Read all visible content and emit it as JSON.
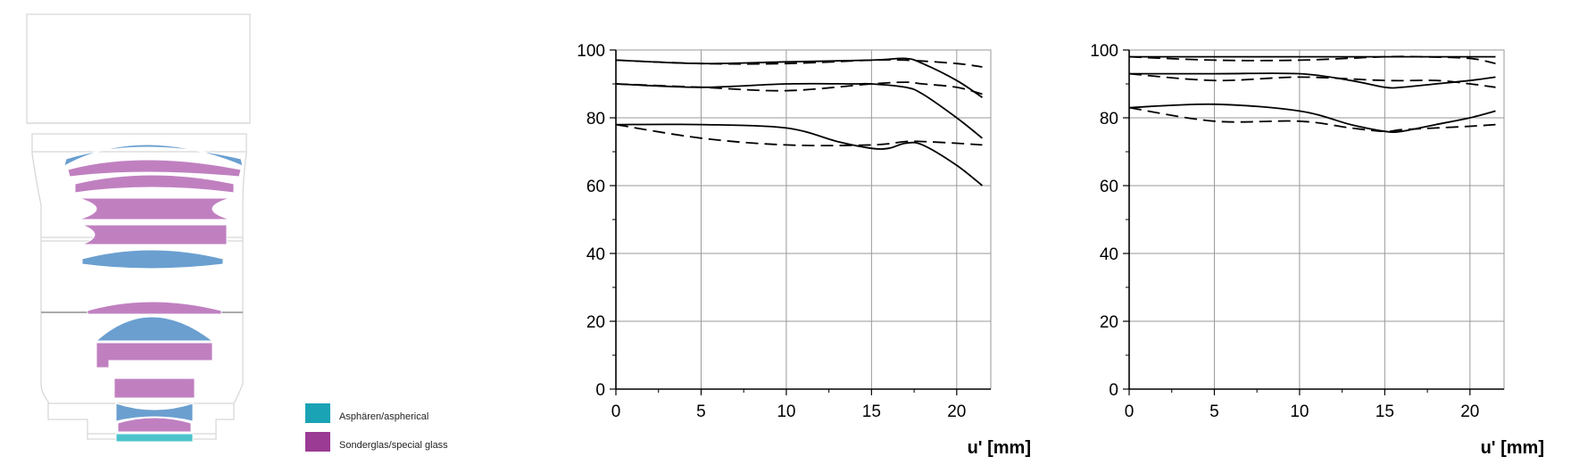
{
  "lens_diagram": {
    "legend": [
      {
        "label": "Asphären/aspherical",
        "color": "#1aa3b5"
      },
      {
        "label": "Sonderglas/special glass",
        "color": "#9b3b93"
      }
    ],
    "colors": {
      "normal_glass": "#6a9fd0",
      "special_glass": "#c080c0",
      "aspherical": "#4cc3cc",
      "outline": "#cfcfcf"
    }
  },
  "chart_data": [
    {
      "type": "line",
      "xlabel": "u' [mm]",
      "ylabel": "",
      "xlim": [
        0,
        22
      ],
      "ylim": [
        0,
        100
      ],
      "xticks": [
        0,
        5,
        10,
        15,
        20
      ],
      "yticks": [
        0,
        20,
        40,
        60,
        80,
        100
      ],
      "grid": true,
      "series": [
        {
          "style": "solid",
          "x": [
            0,
            5,
            10,
            15,
            17,
            18,
            20,
            21.5
          ],
          "y": [
            97,
            96,
            96.5,
            97,
            97.5,
            96,
            91,
            86
          ]
        },
        {
          "style": "dashed",
          "x": [
            0,
            5,
            10,
            15,
            17,
            20,
            21.5
          ],
          "y": [
            97,
            96,
            96,
            97,
            97,
            96,
            95
          ]
        },
        {
          "style": "solid",
          "x": [
            0,
            5,
            10,
            14,
            15,
            17,
            18,
            20,
            21.5
          ],
          "y": [
            90,
            89,
            90,
            90,
            90,
            89,
            87,
            80,
            74
          ]
        },
        {
          "style": "dashed",
          "x": [
            0,
            5,
            10,
            15,
            17,
            18,
            20,
            21.5
          ],
          "y": [
            90,
            89,
            88,
            90,
            90.5,
            90,
            89,
            87
          ]
        },
        {
          "style": "solid",
          "x": [
            0,
            5,
            10,
            13,
            15,
            16,
            17,
            18,
            20,
            21.5
          ],
          "y": [
            78,
            78,
            77,
            73,
            71,
            71,
            72.5,
            72,
            66,
            60
          ]
        },
        {
          "style": "dashed",
          "x": [
            0,
            5,
            10,
            15,
            17,
            18,
            20,
            21.5
          ],
          "y": [
            78,
            74,
            72,
            72,
            73,
            73,
            72.5,
            72
          ]
        }
      ]
    },
    {
      "type": "line",
      "xlabel": "u' [mm]",
      "ylabel": "",
      "xlim": [
        0,
        22
      ],
      "ylim": [
        0,
        100
      ],
      "xticks": [
        0,
        5,
        10,
        15,
        20
      ],
      "yticks": [
        0,
        20,
        40,
        60,
        80,
        100
      ],
      "grid": true,
      "series": [
        {
          "style": "solid",
          "x": [
            0,
            5,
            10,
            15,
            20,
            21.5
          ],
          "y": [
            98,
            98,
            98,
            98,
            98,
            98
          ]
        },
        {
          "style": "dashed",
          "x": [
            0,
            5,
            10,
            15,
            17,
            20,
            21.5
          ],
          "y": [
            98,
            97,
            97,
            98,
            98,
            97.5,
            96
          ]
        },
        {
          "style": "solid",
          "x": [
            0,
            5,
            10,
            13,
            15,
            16,
            18,
            20,
            21.5
          ],
          "y": [
            93,
            93,
            93,
            91,
            89,
            89,
            90,
            91,
            92
          ]
        },
        {
          "style": "dashed",
          "x": [
            0,
            5,
            10,
            15,
            18,
            20,
            21.5
          ],
          "y": [
            93,
            91,
            92,
            91,
            91,
            90,
            89
          ]
        },
        {
          "style": "solid",
          "x": [
            0,
            5,
            10,
            13,
            15,
            16,
            18,
            20,
            21.5
          ],
          "y": [
            83,
            84,
            82,
            78,
            76,
            76,
            78,
            80,
            82
          ]
        },
        {
          "style": "dashed",
          "x": [
            0,
            5,
            10,
            13,
            15,
            16,
            18,
            20,
            21.5
          ],
          "y": [
            83,
            79,
            79,
            77,
            76,
            76.5,
            77,
            77.5,
            78
          ]
        }
      ]
    }
  ]
}
